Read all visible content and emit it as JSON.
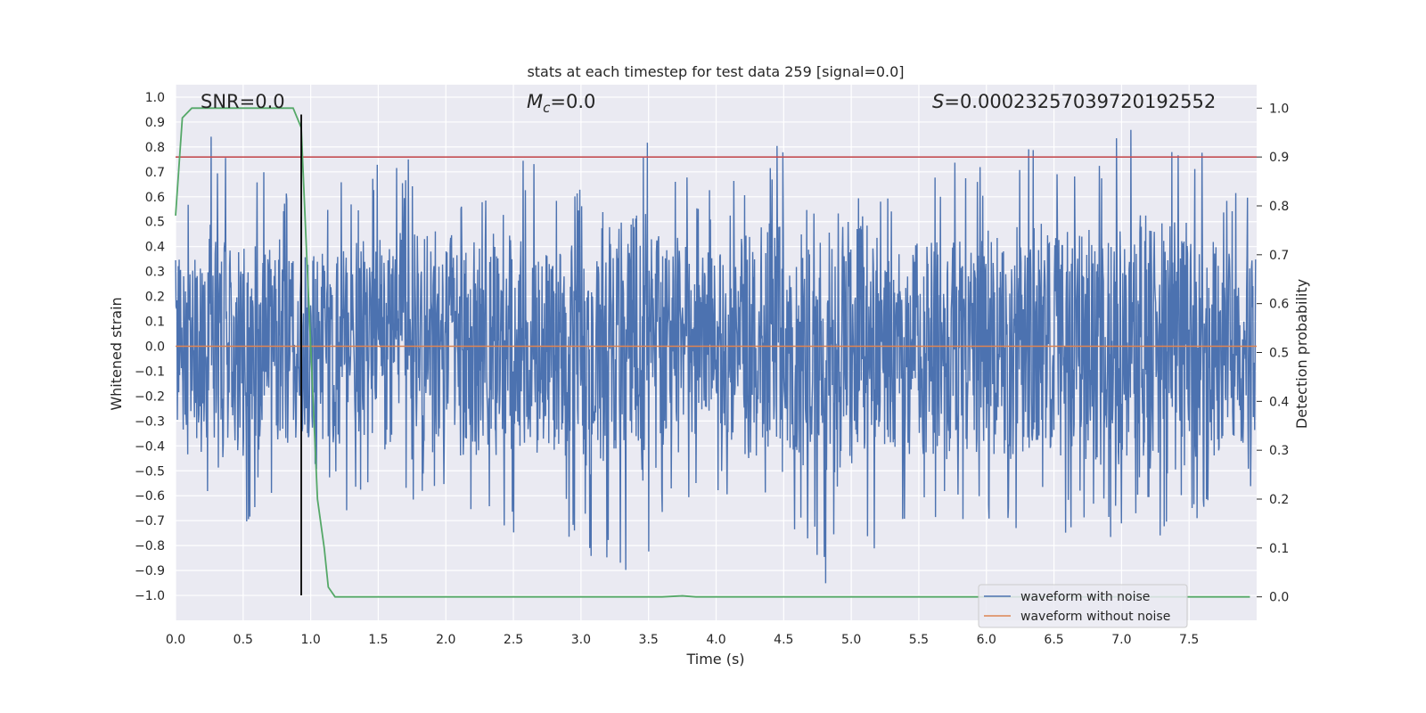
{
  "chart_data": {
    "type": "line",
    "title": "stats at each timestep for test data 259 [signal=0.0]",
    "xlabel": "Time (s)",
    "ylabel_left": "Whitened strain",
    "ylabel_right": "Detection probability",
    "xlim": [
      0.0,
      8.0
    ],
    "ylim_left": [
      -1.1,
      1.05
    ],
    "ylim_right": [
      -0.048,
      1.048
    ],
    "x_ticks": [
      "0.0",
      "0.5",
      "1.0",
      "1.5",
      "2.0",
      "2.5",
      "3.0",
      "3.5",
      "4.0",
      "4.5",
      "5.0",
      "5.5",
      "6.0",
      "6.5",
      "7.0",
      "7.5"
    ],
    "y_left_ticks": [
      "1.0",
      "0.9",
      "0.8",
      "0.7",
      "0.6",
      "0.5",
      "0.4",
      "0.3",
      "0.2",
      "0.1",
      "0.0",
      "−0.1",
      "−0.2",
      "−0.3",
      "−0.4",
      "−0.5",
      "−0.6",
      "−0.7",
      "−0.8",
      "−0.9",
      "−1.0"
    ],
    "y_right_ticks": [
      "1.0",
      "0.9",
      "0.8",
      "0.7",
      "0.6",
      "0.5",
      "0.4",
      "0.3",
      "0.2",
      "0.1",
      "0.0"
    ],
    "grid": true,
    "legend_position": "lower-right",
    "annotations": {
      "snr": "SNR=0.0",
      "mc_symbol": "M",
      "mc_sub": "c",
      "mc_value": "=0.0",
      "s_symbol": "S",
      "s_value": "=0.00023257039720192552"
    },
    "series": [
      {
        "name": "waveform with noise",
        "color": "#4c72b0",
        "axis": "left",
        "description": "dense noisy whitened strain",
        "envelope_samples": {
          "x": [
            0.0,
            0.2,
            0.22,
            0.25,
            0.5,
            0.66,
            1.0,
            1.5,
            1.85,
            2.5,
            2.55,
            3.2,
            3.5,
            3.6,
            4.0,
            4.4,
            4.81,
            5.5,
            7.35,
            8.0
          ],
          "y_max": [
            0.45,
            0.88,
            0.5,
            0.85,
            0.7,
            0.77,
            0.6,
            0.74,
            0.79,
            0.65,
            0.8,
            0.55,
            0.83,
            0.93,
            0.6,
            0.86,
            0.6,
            0.75,
            0.9,
            0.6
          ],
          "y_min": [
            -0.6,
            -0.5,
            -0.8,
            -0.6,
            -0.75,
            -0.6,
            -0.6,
            -0.74,
            -0.65,
            -0.8,
            -0.6,
            -0.94,
            -0.9,
            -0.7,
            -0.6,
            -0.8,
            -1.0,
            -0.7,
            -0.8,
            -0.6
          ]
        }
      },
      {
        "name": "waveform without noise",
        "color": "#dd8452",
        "axis": "left",
        "x": [
          0.0,
          8.0
        ],
        "y": [
          0.0,
          0.0
        ]
      },
      {
        "name": "detection probability",
        "color": "#55a868",
        "axis": "right",
        "x": [
          0.0,
          0.05,
          0.12,
          0.2,
          0.5,
          0.87,
          0.93,
          0.97,
          1.05,
          1.1,
          1.13,
          1.18,
          1.25,
          2.0,
          3.0,
          3.6,
          3.75,
          3.85,
          4.0,
          5.0,
          6.0,
          7.0,
          7.95
        ],
        "y": [
          0.78,
          0.98,
          1.0,
          1.0,
          1.0,
          1.0,
          0.96,
          0.7,
          0.2,
          0.1,
          0.02,
          0.0,
          0.0,
          0.0,
          0.0,
          0.0,
          0.002,
          0.0,
          0.0,
          0.0,
          0.0,
          0.0,
          0.0
        ]
      }
    ],
    "reference_lines": {
      "threshold": {
        "axis": "right",
        "y": 0.9,
        "color": "#c44e52"
      },
      "marker": {
        "axis": "time",
        "x": 0.93,
        "y_range": [
          -1.0,
          0.93
        ],
        "color": "#000000"
      }
    }
  }
}
